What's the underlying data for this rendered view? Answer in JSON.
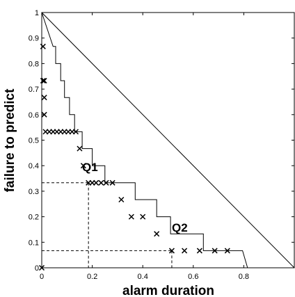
{
  "chart_data": {
    "type": "scatter",
    "xlabel": "alarm duration",
    "ylabel": "failure to predict",
    "xlim": [
      0,
      1
    ],
    "ylim": [
      0,
      1
    ],
    "x_ticks": [
      0,
      0.2,
      0.4,
      0.6,
      0.8
    ],
    "x_tick_labels": [
      "0",
      "0.2",
      "0.4",
      "0.6",
      "0.8"
    ],
    "y_ticks": [
      0,
      0.1,
      0.2,
      0.3,
      0.4,
      0.5,
      0.6,
      0.7,
      0.8,
      0.9,
      1
    ],
    "y_tick_labels": [
      "0",
      "0.1",
      "0.2",
      "0.3",
      "0.4",
      "0.5",
      "0.6",
      "0.7",
      "0.8",
      "0.9",
      "1"
    ],
    "grid": false,
    "points": [
      {
        "x": 0.0,
        "y": 0.0
      },
      {
        "x": 0.005,
        "y": 0.867
      },
      {
        "x": 0.005,
        "y": 0.733
      },
      {
        "x": 0.01,
        "y": 0.733
      },
      {
        "x": 0.01,
        "y": 0.667
      },
      {
        "x": 0.01,
        "y": 0.6
      },
      {
        "x": 0.015,
        "y": 0.533
      },
      {
        "x": 0.03,
        "y": 0.533
      },
      {
        "x": 0.045,
        "y": 0.533
      },
      {
        "x": 0.06,
        "y": 0.533
      },
      {
        "x": 0.075,
        "y": 0.533
      },
      {
        "x": 0.09,
        "y": 0.533
      },
      {
        "x": 0.105,
        "y": 0.533
      },
      {
        "x": 0.12,
        "y": 0.533
      },
      {
        "x": 0.135,
        "y": 0.533
      },
      {
        "x": 0.15,
        "y": 0.467
      },
      {
        "x": 0.165,
        "y": 0.4
      },
      {
        "x": 0.185,
        "y": 0.333
      },
      {
        "x": 0.2,
        "y": 0.333
      },
      {
        "x": 0.215,
        "y": 0.333
      },
      {
        "x": 0.235,
        "y": 0.333
      },
      {
        "x": 0.255,
        "y": 0.333
      },
      {
        "x": 0.28,
        "y": 0.333
      },
      {
        "x": 0.315,
        "y": 0.267
      },
      {
        "x": 0.355,
        "y": 0.2
      },
      {
        "x": 0.4,
        "y": 0.2
      },
      {
        "x": 0.455,
        "y": 0.133
      },
      {
        "x": 0.515,
        "y": 0.067
      },
      {
        "x": 0.565,
        "y": 0.067
      },
      {
        "x": 0.625,
        "y": 0.067
      },
      {
        "x": 0.685,
        "y": 0.067
      },
      {
        "x": 0.735,
        "y": 0.067
      }
    ],
    "upper_bound_step": [
      [
        0.0,
        1.0
      ],
      [
        0.045,
        0.867
      ],
      [
        0.055,
        0.867
      ],
      [
        0.055,
        0.8
      ],
      [
        0.075,
        0.8
      ],
      [
        0.075,
        0.733
      ],
      [
        0.09,
        0.733
      ],
      [
        0.09,
        0.667
      ],
      [
        0.11,
        0.667
      ],
      [
        0.11,
        0.6
      ],
      [
        0.13,
        0.6
      ],
      [
        0.13,
        0.533
      ],
      [
        0.16,
        0.533
      ],
      [
        0.16,
        0.467
      ],
      [
        0.2,
        0.467
      ],
      [
        0.2,
        0.4
      ],
      [
        0.25,
        0.4
      ],
      [
        0.25,
        0.333
      ],
      [
        0.37,
        0.333
      ],
      [
        0.37,
        0.267
      ],
      [
        0.455,
        0.267
      ],
      [
        0.455,
        0.2
      ],
      [
        0.51,
        0.2
      ],
      [
        0.51,
        0.133
      ],
      [
        0.64,
        0.133
      ],
      [
        0.64,
        0.067
      ],
      [
        0.795,
        0.067
      ],
      [
        0.815,
        0.0
      ]
    ],
    "diagonal": [
      [
        0,
        1
      ],
      [
        1,
        0
      ]
    ],
    "markers": [
      {
        "label": "Q1",
        "x": 0.185,
        "y": 0.333
      },
      {
        "label": "Q2",
        "x": 0.515,
        "y": 0.067
      }
    ]
  }
}
